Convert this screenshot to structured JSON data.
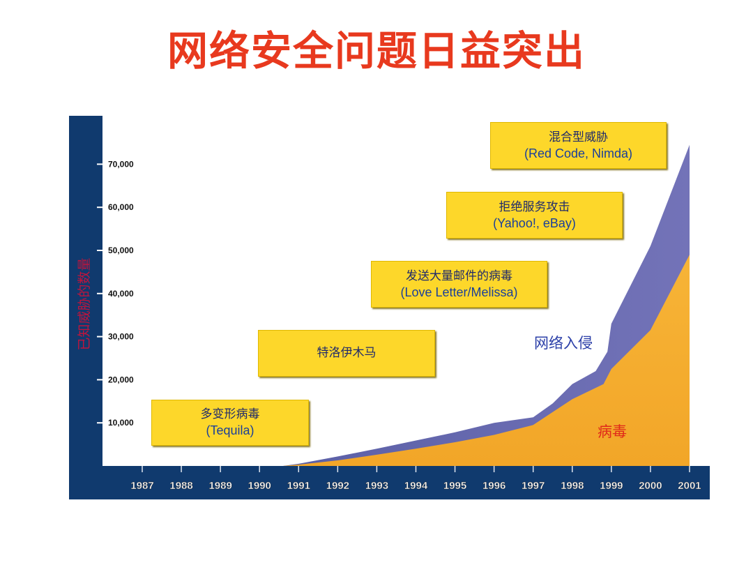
{
  "title": "网络安全问题日益突出",
  "chart_data": {
    "type": "area",
    "ylabel": "已知威胁的数量",
    "ylim": [
      0,
      80000
    ],
    "yticks": [
      10000,
      20000,
      30000,
      40000,
      50000,
      60000,
      70000
    ],
    "ytick_labels": [
      "10,000",
      "20,000",
      "30,000",
      "40,000",
      "50,000",
      "60,000",
      "70,000"
    ],
    "categories": [
      "1987",
      "1988",
      "1989",
      "1990",
      "1991",
      "1992",
      "1993",
      "1994",
      "1995",
      "1996",
      "1997",
      "1998",
      "1999",
      "2000",
      "2001"
    ],
    "series": [
      {
        "name": "病毒",
        "color": "#f5ad30",
        "points": [
          [
            1990.6,
            0
          ],
          [
            1991,
            300
          ],
          [
            1992,
            1300
          ],
          [
            1993,
            2600
          ],
          [
            1994,
            4000
          ],
          [
            1995,
            5500
          ],
          [
            1996,
            7200
          ],
          [
            1997,
            9500
          ],
          [
            1997.5,
            12500
          ],
          [
            1998,
            15500
          ],
          [
            1998.8,
            19000
          ],
          [
            1999,
            22500
          ],
          [
            2000,
            31500
          ],
          [
            2001,
            49000
          ]
        ]
      },
      {
        "name": "网络入侵",
        "color": "#6b6bb2",
        "points": [
          [
            1990.6,
            0
          ],
          [
            1991,
            500
          ],
          [
            1992,
            2200
          ],
          [
            1993,
            4000
          ],
          [
            1994,
            5900
          ],
          [
            1995,
            7800
          ],
          [
            1996,
            10000
          ],
          [
            1997,
            11300
          ],
          [
            1997.5,
            14500
          ],
          [
            1998,
            19000
          ],
          [
            1998.6,
            22000
          ],
          [
            1998.9,
            26500
          ],
          [
            1999,
            33000
          ],
          [
            2000,
            51000
          ],
          [
            2001,
            74500
          ]
        ]
      }
    ],
    "series_labels": {
      "intrusion": "网络入侵",
      "virus": "病毒"
    },
    "annotations": [
      {
        "zh": "多变形病毒",
        "en": "(Tequila)"
      },
      {
        "zh": "特洛伊木马",
        "en": ""
      },
      {
        "zh": "发送大量邮件的病毒",
        "en": "(Love Letter/Melissa)"
      },
      {
        "zh": "拒绝服务攻击",
        "en": "(Yahoo!, eBay)"
      },
      {
        "zh": "混合型威胁",
        "en": "(Red Code, Nimda)"
      }
    ]
  },
  "colors": {
    "frame": "#103a6e",
    "title": "#e8391e",
    "ylabel": "#c0143c",
    "callout": "#fdd72a"
  }
}
